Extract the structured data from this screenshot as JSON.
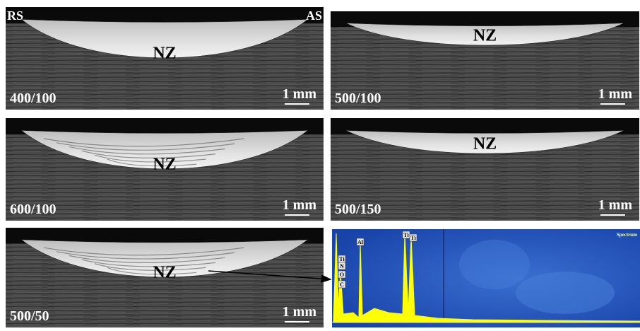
{
  "panels": [
    {
      "label": "400/100",
      "nz": "NZ",
      "scale": "1 mm",
      "rs": "RS",
      "as": "AS"
    },
    {
      "label": "500/100",
      "nz": "NZ",
      "scale": "1 mm"
    },
    {
      "label": "600/100",
      "nz": "NZ",
      "scale": "1 mm"
    },
    {
      "label": "500/150",
      "nz": "NZ",
      "scale": "1 mm"
    },
    {
      "label": "500/50",
      "nz": "NZ",
      "scale": "1 mm"
    }
  ],
  "spectrum": {
    "title": "Spectrum",
    "peaks": [
      "Ti",
      "N",
      "O",
      "C",
      "Al",
      "Ti",
      "Ti"
    ]
  }
}
